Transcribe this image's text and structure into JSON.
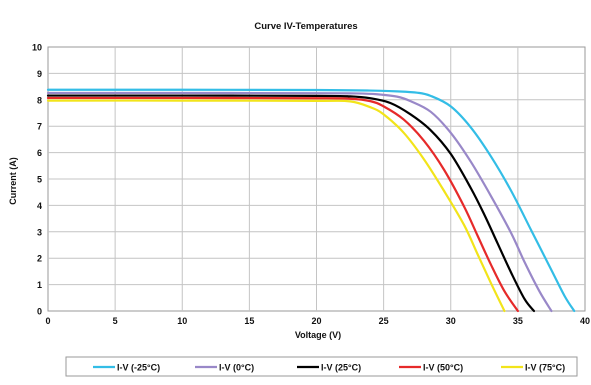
{
  "chart_data": {
    "type": "line",
    "title": "Curve IV-Temperatures",
    "xlabel": "Voltage (V)",
    "ylabel": "Current (A)",
    "xlim": [
      0,
      40
    ],
    "ylim": [
      0,
      10
    ],
    "xticks": [
      0,
      5,
      10,
      15,
      20,
      25,
      30,
      35,
      40
    ],
    "yticks": [
      0,
      1,
      2,
      3,
      4,
      5,
      6,
      7,
      8,
      9,
      10
    ],
    "grid": true,
    "legend_position": "bottom",
    "series": [
      {
        "name": "I-V (-25°C)",
        "color": "#33bde6",
        "x": [
          0,
          10,
          20,
          24,
          26,
          27.5,
          28.5,
          30,
          31.5,
          33,
          34.5,
          36,
          37.5,
          38.5,
          39.2
        ],
        "y": [
          8.38,
          8.38,
          8.37,
          8.35,
          8.32,
          8.27,
          8.15,
          7.75,
          6.95,
          5.85,
          4.55,
          3.05,
          1.55,
          0.55,
          0
        ]
      },
      {
        "name": "I-V (0°C)",
        "color": "#9988c8",
        "x": [
          0,
          10,
          20,
          23,
          24.5,
          26,
          27,
          28.5,
          30,
          31.5,
          33,
          34.5,
          35.5,
          36.6,
          37.5
        ],
        "y": [
          8.26,
          8.26,
          8.25,
          8.24,
          8.21,
          8.12,
          7.95,
          7.55,
          6.75,
          5.65,
          4.35,
          2.95,
          1.85,
          0.75,
          0
        ]
      },
      {
        "name": "I-V (25°C)",
        "color": "#000000",
        "x": [
          0,
          10,
          20,
          22.5,
          24,
          25.5,
          27,
          28.5,
          30,
          31.5,
          32.5,
          33.5,
          34.5,
          35.5,
          36.2
        ],
        "y": [
          8.16,
          8.16,
          8.15,
          8.13,
          8.06,
          7.88,
          7.45,
          6.85,
          5.95,
          4.65,
          3.65,
          2.55,
          1.45,
          0.45,
          0
        ]
      },
      {
        "name": "I-V (50°C)",
        "color": "#e62a2a",
        "x": [
          0,
          10,
          20,
          22.5,
          24,
          25,
          26.5,
          28,
          29.5,
          31,
          32,
          33,
          34,
          35
        ],
        "y": [
          8.07,
          8.07,
          8.06,
          8.04,
          7.95,
          7.75,
          7.25,
          6.45,
          5.35,
          3.95,
          2.85,
          1.75,
          0.75,
          0
        ]
      },
      {
        "name": "I-V (75°C)",
        "color": "#f2e41a",
        "x": [
          0,
          10,
          20,
          22.5,
          24,
          25,
          26.5,
          28,
          29.5,
          31,
          32,
          33,
          34
        ],
        "y": [
          7.97,
          7.97,
          7.96,
          7.94,
          7.72,
          7.45,
          6.75,
          5.75,
          4.55,
          3.25,
          2.15,
          1.05,
          0
        ]
      }
    ]
  }
}
